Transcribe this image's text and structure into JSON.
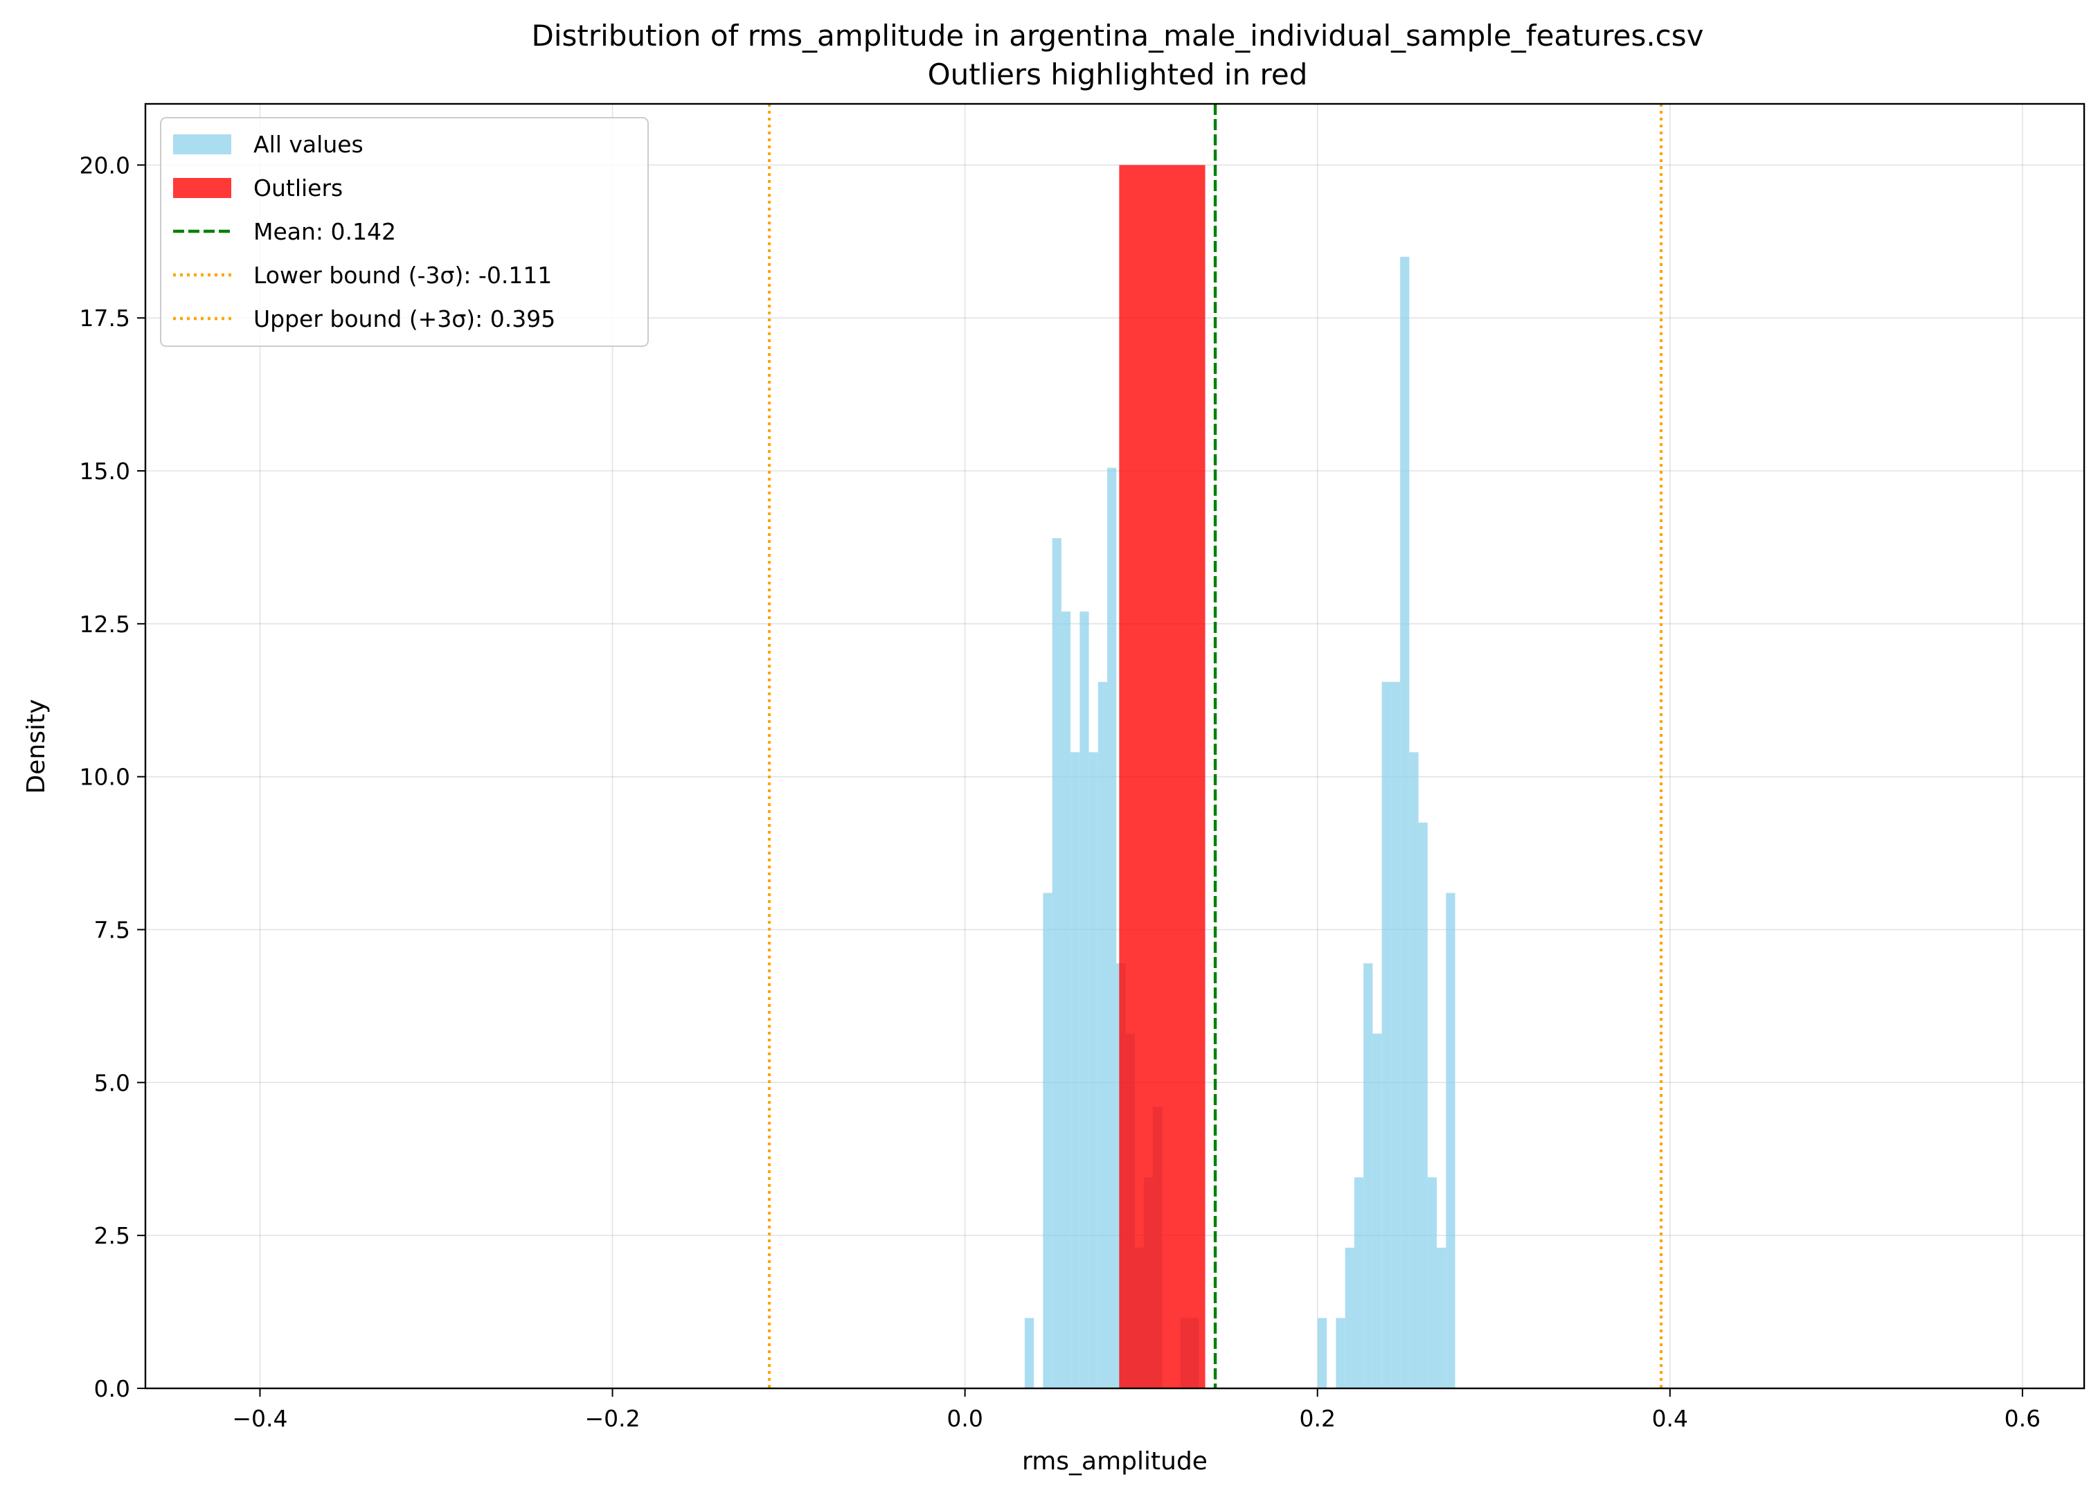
{
  "chart_data": {
    "type": "bar",
    "title": "Distribution of rms_amplitude in argentina_male_individual_sample_features.csv",
    "subtitle": "Outliers highlighted in red",
    "xlabel": "rms_amplitude",
    "ylabel": "Density",
    "xlim": [
      -0.465,
      0.635
    ],
    "ylim": [
      0,
      21
    ],
    "x_ticks": [
      -0.4,
      -0.2,
      0.0,
      0.2,
      0.4,
      0.6
    ],
    "x_tick_labels": [
      "−0.4",
      "−0.2",
      "0.0",
      "0.2",
      "0.4",
      "0.6"
    ],
    "y_ticks": [
      0.0,
      2.5,
      5.0,
      7.5,
      10.0,
      12.5,
      15.0,
      17.5,
      20.0
    ],
    "y_tick_labels": [
      "0.0",
      "2.5",
      "5.0",
      "7.5",
      "10.0",
      "12.5",
      "15.0",
      "17.5",
      "20.0"
    ],
    "grid": true,
    "legend_position": "top-left",
    "colors": {
      "all_values": "#87ceeb",
      "outliers": "#ff0000",
      "mean": "#008000",
      "bounds": "#ffa500"
    },
    "series": [
      {
        "name": "All values",
        "bin_width": 0.0052,
        "bins": [
          {
            "x": 0.0365,
            "y": 1.15
          },
          {
            "x": 0.0417,
            "y": 0.0
          },
          {
            "x": 0.0469,
            "y": 8.1
          },
          {
            "x": 0.0521,
            "y": 13.9
          },
          {
            "x": 0.0573,
            "y": 12.7
          },
          {
            "x": 0.0625,
            "y": 10.4
          },
          {
            "x": 0.0677,
            "y": 12.7
          },
          {
            "x": 0.0729,
            "y": 10.4
          },
          {
            "x": 0.0781,
            "y": 11.55
          },
          {
            "x": 0.0833,
            "y": 15.05
          },
          {
            "x": 0.0885,
            "y": 6.95
          },
          {
            "x": 0.0937,
            "y": 5.8
          },
          {
            "x": 0.0989,
            "y": 2.3
          },
          {
            "x": 0.1041,
            "y": 3.45
          },
          {
            "x": 0.1093,
            "y": 4.6
          },
          {
            "x": 0.1145,
            "y": 0.0
          },
          {
            "x": 0.1197,
            "y": 0.0
          },
          {
            "x": 0.1249,
            "y": 1.15
          },
          {
            "x": 0.1301,
            "y": 1.15
          },
          {
            "x": 0.1353,
            "y": 0.0
          },
          {
            "x": 0.2027,
            "y": 1.15
          },
          {
            "x": 0.2079,
            "y": 0.0
          },
          {
            "x": 0.2131,
            "y": 1.15
          },
          {
            "x": 0.2183,
            "y": 2.3
          },
          {
            "x": 0.2235,
            "y": 3.45
          },
          {
            "x": 0.2287,
            "y": 6.95
          },
          {
            "x": 0.2339,
            "y": 5.8
          },
          {
            "x": 0.2391,
            "y": 11.55
          },
          {
            "x": 0.2443,
            "y": 11.55
          },
          {
            "x": 0.2495,
            "y": 18.5
          },
          {
            "x": 0.2547,
            "y": 10.4
          },
          {
            "x": 0.2599,
            "y": 9.25
          },
          {
            "x": 0.2651,
            "y": 3.45
          },
          {
            "x": 0.2703,
            "y": 2.3
          },
          {
            "x": 0.2755,
            "y": 8.1
          }
        ]
      },
      {
        "name": "Outliers",
        "bins": [
          {
            "x": 0.0875,
            "width": 0.0488,
            "y": 20.0
          }
        ]
      }
    ],
    "lines": [
      {
        "kind": "mean",
        "x": 0.142,
        "label": "Mean: 0.142"
      },
      {
        "kind": "lower",
        "x": -0.111,
        "label": "Lower bound (-3σ): -0.111"
      },
      {
        "kind": "upper",
        "x": 0.395,
        "label": "Upper bound (+3σ): 0.395"
      }
    ]
  }
}
